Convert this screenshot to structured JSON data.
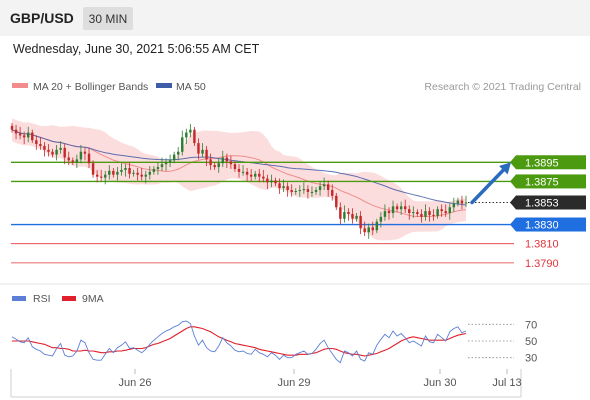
{
  "header": {
    "symbol": "GBP/USD",
    "timeframe": "30 MIN",
    "timestamp": "Wednesday, June 30, 2021 5:06:55 AM CET"
  },
  "legend": {
    "ma20": "MA 20 + Bollinger Bands",
    "ma50": "MA 50",
    "credit": "Research © 2021 Trading Central"
  },
  "rsi_legend": {
    "rsi": "RSI",
    "ma": "9MA"
  },
  "colors": {
    "bull": "#2e7d32",
    "bear": "#c62828",
    "bollinger": "#f9cfd0",
    "ma20": "#f28c8c",
    "ma50": "#3f5ca8",
    "support_blue": "#1f6fe0",
    "resistance_green": "#4c9a0f",
    "target_red": "#e0353a",
    "rsi_line": "#5b7fd6",
    "rsi_ma": "#e0202a",
    "arrow": "#2a6bbd"
  },
  "chart_data": [
    {
      "type": "candlestick",
      "title": "GBP/USD",
      "x_ticks": [
        "Jun 26",
        "Jun 29",
        "Jun 30",
        "Jul 13"
      ],
      "ylim": [
        1.377,
        1.396
      ],
      "levels": [
        {
          "value": 1.3895,
          "label": "1.3895",
          "kind": "resistance"
        },
        {
          "value": 1.3875,
          "label": "1.3875",
          "kind": "resistance"
        },
        {
          "value": 1.3853,
          "label": "1.3853",
          "kind": "current"
        },
        {
          "value": 1.383,
          "label": "1.3830",
          "kind": "support"
        },
        {
          "value": 1.381,
          "label": "1.3810",
          "kind": "target"
        },
        {
          "value": 1.379,
          "label": "1.3790",
          "kind": "target"
        }
      ],
      "forecast": {
        "from": 1.3853,
        "to": 1.3895
      },
      "close": [
        1.3929,
        1.3925,
        1.3923,
        1.3921,
        1.3926,
        1.3918,
        1.3914,
        1.3912,
        1.3908,
        1.3906,
        1.3903,
        1.3908,
        1.391,
        1.39,
        1.3897,
        1.3895,
        1.3898,
        1.3906,
        1.3904,
        1.3894,
        1.3882,
        1.388,
        1.3879,
        1.3882,
        1.3886,
        1.3882,
        1.3885,
        1.3887,
        1.3889,
        1.3883,
        1.3884,
        1.3882,
        1.388,
        1.3882,
        1.3885,
        1.3888,
        1.389,
        1.3893,
        1.3895,
        1.3897,
        1.3903,
        1.3906,
        1.3921,
        1.3926,
        1.3929,
        1.3915,
        1.3904,
        1.3908,
        1.3898,
        1.3892,
        1.389,
        1.3894,
        1.39,
        1.3896,
        1.3893,
        1.3888,
        1.3885,
        1.3885,
        1.3882,
        1.388,
        1.3883,
        1.388,
        1.3878,
        1.3874,
        1.3876,
        1.3873,
        1.3868,
        1.387,
        1.3866,
        1.3864,
        1.3865,
        1.3866,
        1.3867,
        1.3864,
        1.3864,
        1.3866,
        1.387,
        1.3872,
        1.3866,
        1.386,
        1.3848,
        1.3836,
        1.3843,
        1.3841,
        1.3836,
        1.3839,
        1.3826,
        1.3822,
        1.3827,
        1.3824,
        1.3833,
        1.3838,
        1.3844,
        1.3842,
        1.3849,
        1.3846,
        1.3849,
        1.3846,
        1.3842,
        1.3843,
        1.3841,
        1.3838,
        1.3844,
        1.384,
        1.3839,
        1.3846,
        1.3844,
        1.3842,
        1.3848,
        1.3852,
        1.3855,
        1.3852,
        1.3853
      ]
    },
    {
      "type": "line",
      "title": "RSI",
      "y_ticks": [
        70,
        50,
        30
      ],
      "ylim": [
        20,
        80
      ],
      "series": [
        {
          "name": "RSI",
          "values": [
            55,
            52,
            49,
            48,
            54,
            43,
            40,
            38,
            34,
            33,
            32,
            41,
            47,
            33,
            31,
            32,
            38,
            51,
            48,
            36,
            28,
            27,
            27,
            34,
            41,
            36,
            42,
            45,
            49,
            41,
            42,
            39,
            36,
            40,
            46,
            51,
            55,
            59,
            62,
            64,
            67,
            69,
            73,
            74,
            71,
            56,
            45,
            51,
            42,
            38,
            37,
            44,
            54,
            48,
            44,
            39,
            37,
            38,
            35,
            34,
            40,
            36,
            34,
            31,
            36,
            33,
            28,
            33,
            30,
            30,
            34,
            36,
            38,
            34,
            35,
            40,
            47,
            51,
            42,
            35,
            28,
            24,
            38,
            36,
            32,
            38,
            28,
            26,
            36,
            34,
            45,
            52,
            58,
            54,
            62,
            56,
            59,
            54,
            48,
            50,
            47,
            44,
            56,
            49,
            48,
            58,
            54,
            50,
            61,
            65,
            67,
            60,
            62
          ]
        },
        {
          "name": "9MA",
          "values": [
            50,
            50,
            50,
            50,
            50,
            49,
            48,
            47,
            46,
            44,
            42,
            42,
            41,
            41,
            40,
            38,
            38,
            38,
            39,
            38,
            38,
            37,
            36,
            36,
            37,
            37,
            38,
            38,
            39,
            40,
            41,
            41,
            41,
            42,
            44,
            46,
            47,
            49,
            51,
            53,
            56,
            59,
            62,
            65,
            67,
            67,
            66,
            65,
            63,
            61,
            58,
            55,
            53,
            51,
            49,
            47,
            46,
            45,
            44,
            43,
            42,
            40,
            39,
            38,
            37,
            36,
            35,
            34,
            33,
            33,
            33,
            34,
            34,
            34,
            35,
            36,
            38,
            40,
            41,
            41,
            40,
            38,
            36,
            35,
            34,
            34,
            33,
            32,
            33,
            34,
            35,
            37,
            39,
            41,
            44,
            47,
            50,
            52,
            54,
            55,
            54,
            53,
            52,
            51,
            51,
            51,
            51,
            51,
            53,
            55,
            57,
            58,
            59
          ]
        }
      ]
    }
  ]
}
